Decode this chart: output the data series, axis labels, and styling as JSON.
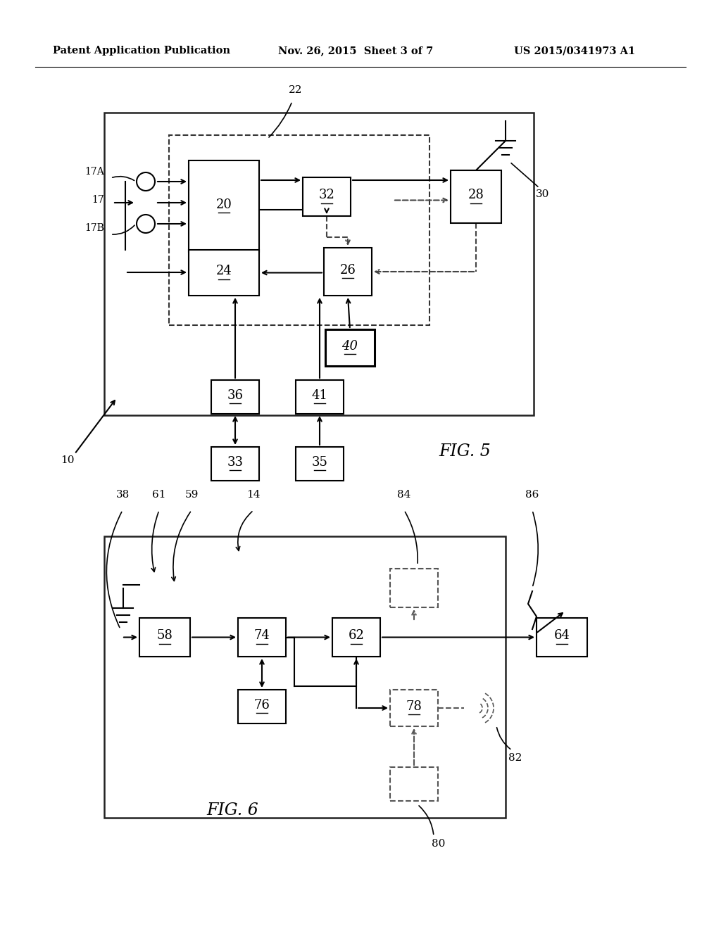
{
  "bg_color": "#ffffff",
  "header_left": "Patent Application Publication",
  "header_mid": "Nov. 26, 2015  Sheet 3 of 7",
  "header_right": "US 2015/0341973 A1"
}
